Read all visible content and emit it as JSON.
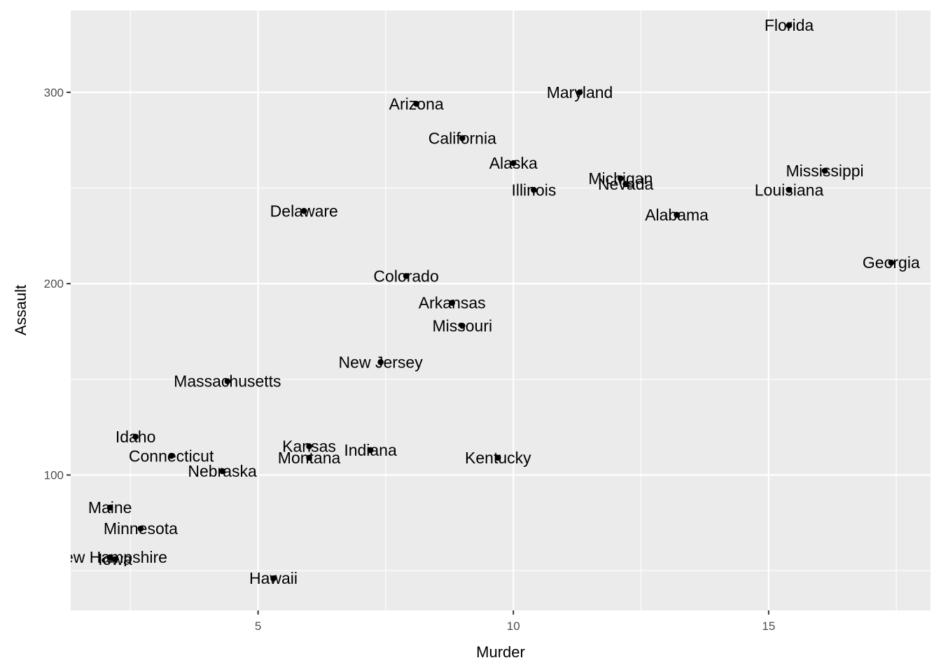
{
  "chart_data": {
    "type": "scatter",
    "xlabel": "Murder",
    "ylabel": "Assault",
    "xlim": [
      1.33,
      18.17
    ],
    "ylim": [
      29.25,
      342.75
    ],
    "x_ticks": [
      5,
      10,
      15
    ],
    "y_ticks": [
      100,
      200,
      300
    ],
    "grid": true,
    "colors": {
      "panel": "#ebebeb",
      "grid": "#ffffff",
      "point": "#000000"
    },
    "points": [
      {
        "label": "Florida",
        "x": 15.4,
        "y": 335
      },
      {
        "label": "Maryland",
        "x": 11.3,
        "y": 300
      },
      {
        "label": "Arizona",
        "x": 8.1,
        "y": 294
      },
      {
        "label": "California",
        "x": 9.0,
        "y": 276
      },
      {
        "label": "Alaska",
        "x": 10.0,
        "y": 263
      },
      {
        "label": "Mississippi",
        "x": 16.1,
        "y": 259
      },
      {
        "label": "Michigan",
        "x": 12.1,
        "y": 255
      },
      {
        "label": "Nevada",
        "x": 12.2,
        "y": 252
      },
      {
        "label": "Illinois",
        "x": 10.4,
        "y": 249
      },
      {
        "label": "Louisiana",
        "x": 15.4,
        "y": 249
      },
      {
        "label": "Delaware",
        "x": 5.9,
        "y": 238
      },
      {
        "label": "Alabama",
        "x": 13.2,
        "y": 236
      },
      {
        "label": "Georgia",
        "x": 17.4,
        "y": 211
      },
      {
        "label": "Colorado",
        "x": 7.9,
        "y": 204
      },
      {
        "label": "Arkansas",
        "x": 8.8,
        "y": 190
      },
      {
        "label": "Missouri",
        "x": 9.0,
        "y": 178
      },
      {
        "label": "New Jersey",
        "x": 7.4,
        "y": 159
      },
      {
        "label": "Massachusetts",
        "x": 4.4,
        "y": 149
      },
      {
        "label": "Idaho",
        "x": 2.6,
        "y": 120
      },
      {
        "label": "Kansas",
        "x": 6.0,
        "y": 115
      },
      {
        "label": "Indiana",
        "x": 7.2,
        "y": 113
      },
      {
        "label": "Connecticut",
        "x": 3.3,
        "y": 110
      },
      {
        "label": "Montana",
        "x": 6.0,
        "y": 109
      },
      {
        "label": "Kentucky",
        "x": 9.7,
        "y": 109
      },
      {
        "label": "Nebraska",
        "x": 4.3,
        "y": 102
      },
      {
        "label": "Maine",
        "x": 2.1,
        "y": 83
      },
      {
        "label": "Minnesota",
        "x": 2.7,
        "y": 72
      },
      {
        "label": "New Hampshire",
        "x": 2.1,
        "y": 57
      },
      {
        "label": "Iowa",
        "x": 2.2,
        "y": 56
      },
      {
        "label": "Hawaii",
        "x": 5.3,
        "y": 46
      }
    ]
  }
}
